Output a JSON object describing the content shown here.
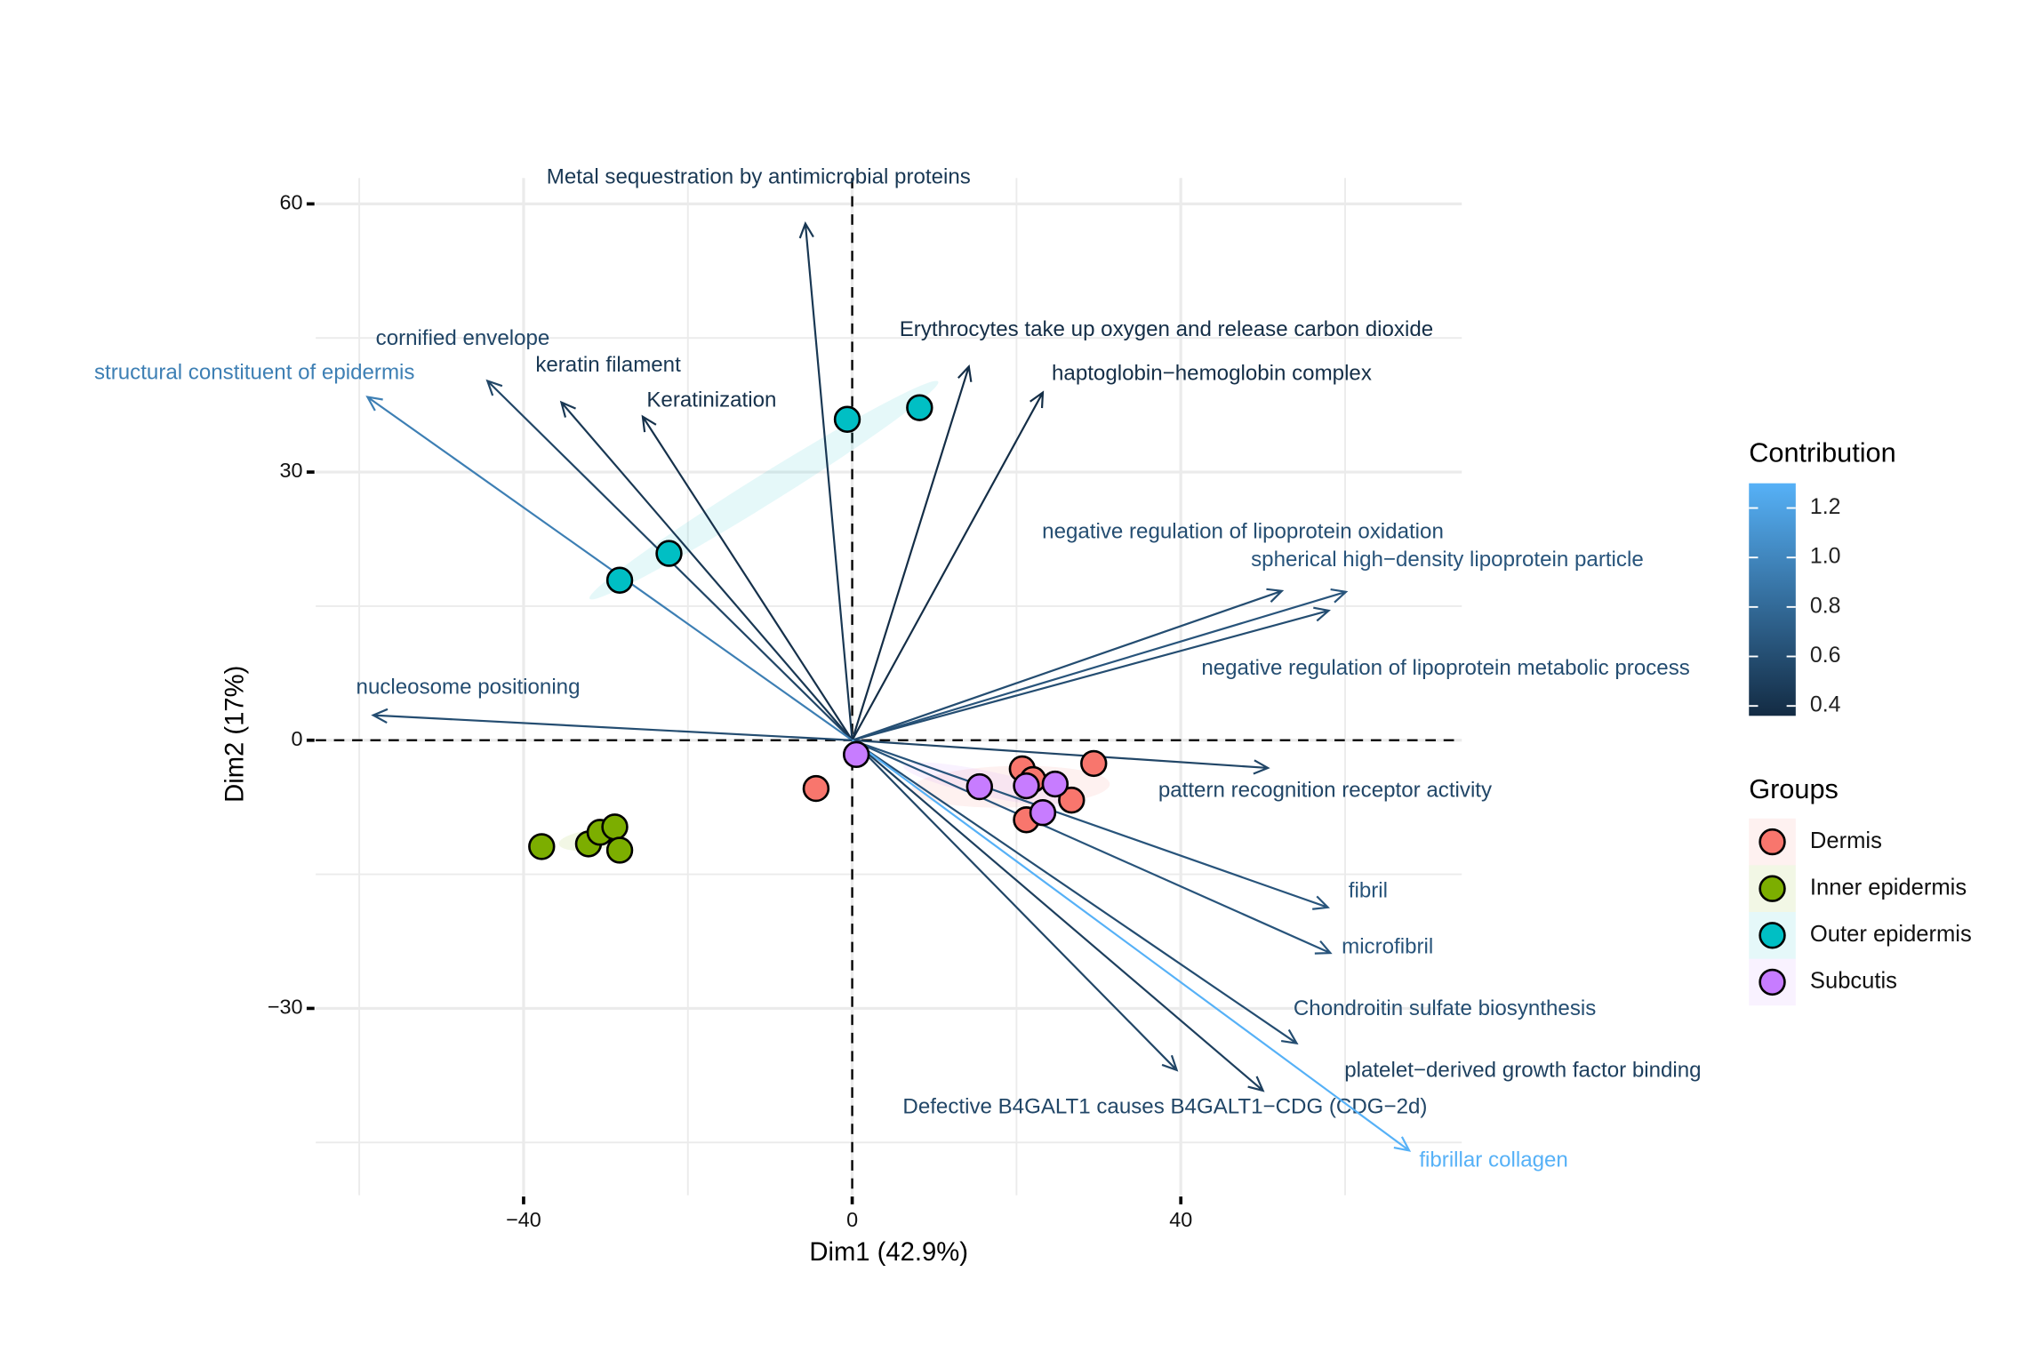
{
  "chart_data": {
    "type": "biplot",
    "x_label": "Dim1 (42.9%)",
    "y_label": "Dim2 (17%)",
    "xlim": [
      -65.3,
      74.2
    ],
    "ylim": [
      -50.9,
      62.9
    ],
    "xticks": [
      {
        "value": -40,
        "label": "−40"
      },
      0,
      40
    ],
    "yticks": [
      {
        "value": -30,
        "label": "−30"
      },
      0,
      30,
      60
    ],
    "xminor": [
      -60,
      -20,
      20,
      60
    ],
    "yminor": [
      -45,
      -15,
      15,
      45
    ],
    "groups_title": "Groups",
    "series": [
      {
        "name": "Dermis",
        "color": "#F8766D",
        "x": [
          -4.4,
          20.7,
          22.0,
          29.4,
          26.7,
          21.2
        ],
        "values": [
          -5.4,
          -3.2,
          -4.4,
          -2.6,
          -6.7,
          -8.9
        ]
      },
      {
        "name": "Inner epidermis",
        "color": "#7CAE00",
        "x": [
          -37.8,
          -32.1,
          -30.7,
          -28.9,
          -28.3
        ],
        "values": [
          -11.9,
          -11.6,
          -10.3,
          -9.7,
          -12.3
        ]
      },
      {
        "name": "Outer epidermis",
        "color": "#00BFC4",
        "x": [
          -0.6,
          8.2,
          -22.3,
          -28.3
        ],
        "values": [
          35.9,
          37.2,
          20.9,
          17.9
        ]
      },
      {
        "name": "Subcutis",
        "color": "#C77CFF",
        "x": [
          0.5,
          15.5,
          21.2,
          24.7,
          23.2
        ],
        "values": [
          -1.6,
          -5.2,
          -5.1,
          -4.9,
          -8.1
        ]
      }
    ],
    "variables": {
      "names": [
        "Metal sequestration by antimicrobial proteins",
        "Erythrocytes take up oxygen and release carbon dioxide",
        "haptoglobin−hemoglobin complex",
        "cornified envelope",
        "keratin filament",
        "Keratinization",
        "structural constituent of epidermis",
        "negative regulation of lipoprotein oxidation",
        "spherical high−density lipoprotein particle",
        "negative regulation of lipoprotein metabolic process",
        "nucleosome positioning",
        "pattern recognition receptor activity",
        "fibril",
        "microfibril",
        "Chondroitin sulfate biosynthesis",
        "platelet−derived growth factor binding",
        "Defective B4GALT1 causes B4GALT1−CDG (CDG−2d)",
        "fibrillar collagen"
      ],
      "x": [
        -5.7,
        14.2,
        23.2,
        -44.4,
        -35.4,
        -25.5,
        -59,
        52.3,
        60.1,
        58.0,
        -58.3,
        50.6,
        57.9,
        58.2,
        54.1,
        50.0,
        39.5,
        67.8
      ],
      "values": [
        57.8,
        41.8,
        38.9,
        40.2,
        37.8,
        36.2,
        38.4,
        16.7,
        16.6,
        14.5,
        2.8,
        -3.1,
        -18.7,
        -23.8,
        -33.9,
        -39.2,
        -36.9,
        -45.9
      ],
      "contribution": [
        0.45,
        0.38,
        0.38,
        0.55,
        0.45,
        0.4,
        0.95,
        0.6,
        0.65,
        0.6,
        0.6,
        0.55,
        0.65,
        0.65,
        0.6,
        0.5,
        0.55,
        1.3
      ]
    },
    "contribution_legend": {
      "title": "Contribution",
      "lim": [
        0.36,
        1.3
      ],
      "ticks": [
        0.4,
        0.6,
        0.8,
        {
          "value": 1,
          "label": "1.0"
        },
        1.2
      ],
      "low": "#132B43",
      "high": "#56B1F7"
    }
  }
}
